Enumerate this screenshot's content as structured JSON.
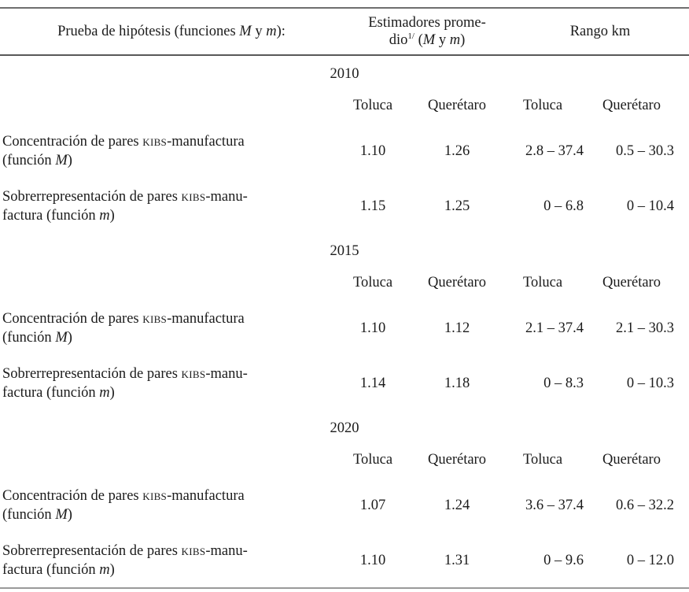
{
  "table": {
    "header": {
      "col1": {
        "pre": "Prueba de hipótesis (funciones ",
        "m1": "M",
        "mid": " y ",
        "m2": "m",
        "post": "):"
      },
      "col2": {
        "line1": "Estimadores prome-",
        "line2_pre": "dio",
        "sup": "1/",
        "line2_mid": " (",
        "m1": "M",
        "line2_y": " y ",
        "m2": "m",
        "line2_post": ")"
      },
      "col3": "Rango km"
    },
    "sections": [
      {
        "year": "2010",
        "subheaders": [
          "Toluca",
          "Querétaro",
          "Toluca",
          "Querétaro"
        ],
        "rows": [
          {
            "label": {
              "l1_pre": "Concentración de pares ",
              "l1_sc": "kibs",
              "l1_post": "-manufactura",
              "l2_pre": "(función ",
              "l2_it": "M",
              "l2_post": ")"
            },
            "est_toluca": "1.10",
            "est_queretaro": "1.26",
            "rango_toluca": "2.8 – 37.4",
            "rango_queretaro": "0.5 – 30.3"
          },
          {
            "label": {
              "l1_pre": "Sobrerrepresentación de pares ",
              "l1_sc": "kibs",
              "l1_post": "-manu-",
              "l2_pre": "factura (función ",
              "l2_it": "m",
              "l2_post": ")"
            },
            "est_toluca": "1.15",
            "est_queretaro": "1.25",
            "rango_toluca": "0 – 6.8",
            "rango_queretaro": "0 – 10.4"
          }
        ]
      },
      {
        "year": "2015",
        "subheaders": [
          "Toluca",
          "Querétaro",
          "Toluca",
          "Querétaro"
        ],
        "rows": [
          {
            "label": {
              "l1_pre": "Concentración de pares ",
              "l1_sc": "kibs",
              "l1_post": "-manufactura",
              "l2_pre": "(función ",
              "l2_it": "M",
              "l2_post": ")"
            },
            "est_toluca": "1.10",
            "est_queretaro": "1.12",
            "rango_toluca": "2.1 – 37.4",
            "rango_queretaro": "2.1 – 30.3"
          },
          {
            "label": {
              "l1_pre": "Sobrerrepresentación de pares ",
              "l1_sc": "kibs",
              "l1_post": "-manu-",
              "l2_pre": "factura (función ",
              "l2_it": "m",
              "l2_post": ")"
            },
            "est_toluca": "1.14",
            "est_queretaro": "1.18",
            "rango_toluca": "0 – 8.3",
            "rango_queretaro": "0 – 10.3"
          }
        ]
      },
      {
        "year": "2020",
        "subheaders": [
          "Toluca",
          "Querétaro",
          "Toluca",
          "Querétaro"
        ],
        "rows": [
          {
            "label": {
              "l1_pre": "Concentración de pares ",
              "l1_sc": "kibs",
              "l1_post": "-manufactura",
              "l2_pre": "(función ",
              "l2_it": "M",
              "l2_post": ")"
            },
            "est_toluca": "1.07",
            "est_queretaro": "1.24",
            "rango_toluca": "3.6 – 37.4",
            "rango_queretaro": "0.6 – 32.2"
          },
          {
            "label": {
              "l1_pre": "Sobrerrepresentación de pares ",
              "l1_sc": "kibs",
              "l1_post": "-manu-",
              "l2_pre": "factura (función ",
              "l2_it": "m",
              "l2_post": ")"
            },
            "est_toluca": "1.10",
            "est_queretaro": "1.31",
            "rango_toluca": "0 – 9.6",
            "rango_queretaro": "0 – 12.0"
          }
        ]
      }
    ]
  }
}
